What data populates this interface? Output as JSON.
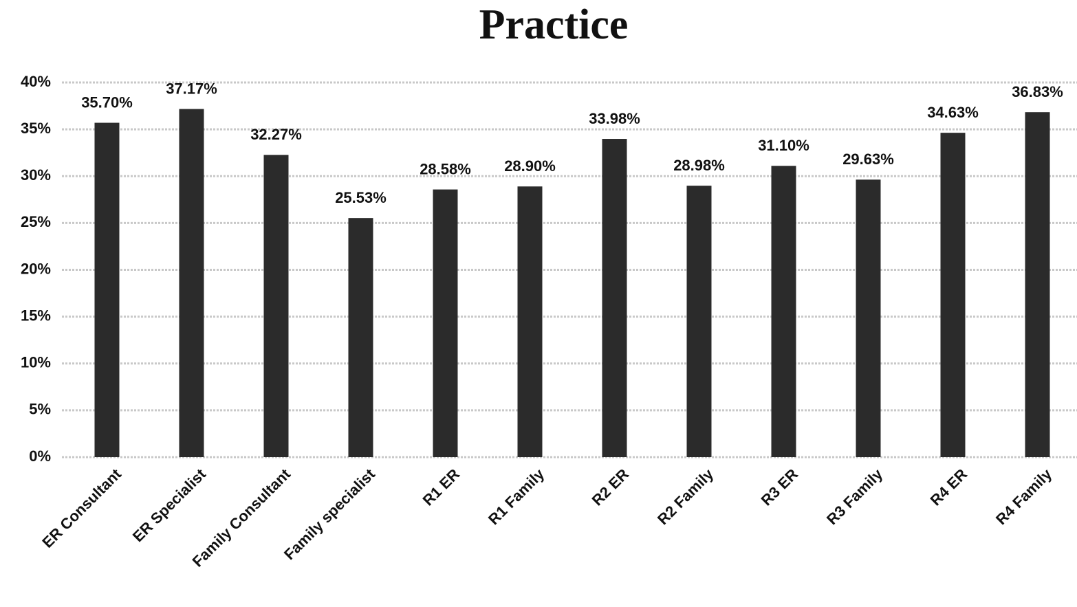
{
  "chart_data": {
    "type": "bar",
    "title": "Practice",
    "categories": [
      "ER Consultant",
      "ER Specialist",
      "Family Consultant",
      "Family specialist",
      "R1 ER",
      "R1 Family",
      "R2 ER",
      "R2 Family",
      "R3 ER",
      "R3 Family",
      "R4 ER",
      "R4 Family"
    ],
    "values": [
      35.7,
      37.17,
      32.27,
      25.53,
      28.58,
      28.9,
      33.98,
      28.98,
      31.1,
      29.63,
      34.63,
      36.83
    ],
    "value_labels": [
      "35.70%",
      "37.17%",
      "32.27%",
      "25.53%",
      "28.58%",
      "28.90%",
      "33.98%",
      "28.98%",
      "31.10%",
      "29.63%",
      "34.63%",
      "36.83%"
    ],
    "color": "#2b2b2b",
    "ylim": [
      0,
      40
    ],
    "yticks": [
      {
        "value": 0,
        "label": "0%"
      },
      {
        "value": 5,
        "label": "5%"
      },
      {
        "value": 10,
        "label": "10%"
      },
      {
        "value": 15,
        "label": "15%"
      },
      {
        "value": 20,
        "label": "20%"
      },
      {
        "value": 25,
        "label": "25%"
      },
      {
        "value": 30,
        "label": "30%"
      },
      {
        "value": 35,
        "label": "35%"
      },
      {
        "value": 40,
        "label": "40%"
      }
    ],
    "grid": true
  }
}
